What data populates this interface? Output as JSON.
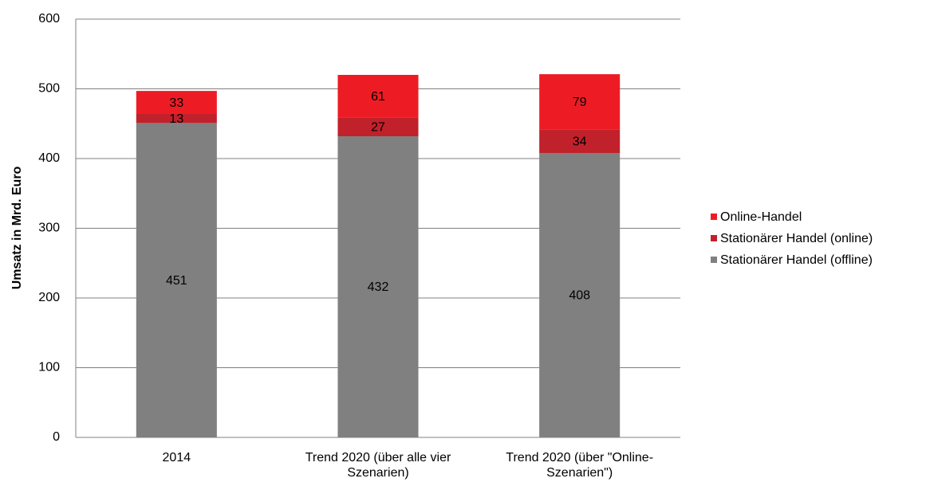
{
  "chart_data": {
    "type": "stacked_bar",
    "y_label": "Umsatz in Mrd. Euro",
    "categories": [
      "2014",
      "Trend 2020 (über alle vier Szenarien)",
      "Trend 2020 (über \"Online-Szenarien\")"
    ],
    "series": [
      {
        "name": "Stationärer Handel (offline)",
        "color": "#808080",
        "values": [
          451,
          432,
          408
        ]
      },
      {
        "name": "Stationärer Handel (online)",
        "color": "#c1212b",
        "values": [
          13,
          27,
          34
        ]
      },
      {
        "name": "Online-Handel",
        "color": "#ed1c24",
        "values": [
          33,
          61,
          79
        ]
      }
    ],
    "ylim": [
      0,
      600
    ],
    "yticks": [
      0,
      100,
      200,
      300,
      400,
      500,
      600
    ],
    "grid": true,
    "legend": "right"
  }
}
